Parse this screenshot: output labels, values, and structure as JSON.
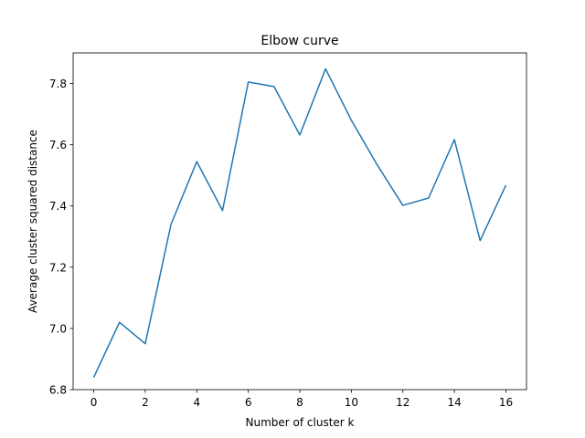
{
  "chart_data": {
    "type": "line",
    "title": "Elbow curve",
    "xlabel": "Number of cluster k",
    "ylabel": "Average cluster squared distance",
    "xlim": [
      -0.8,
      16.8
    ],
    "ylim": [
      6.8,
      7.9
    ],
    "xticks": [
      0,
      2,
      4,
      6,
      8,
      10,
      12,
      14,
      16
    ],
    "yticks": [
      6.8,
      7.0,
      7.2,
      7.4,
      7.6,
      7.8
    ],
    "ytick_labels": [
      "6.8",
      "7.0",
      "7.2",
      "7.4",
      "7.6",
      "7.8"
    ],
    "grid": false,
    "series": [
      {
        "color": "#1f77b4",
        "x": [
          0,
          1,
          2,
          3,
          4,
          5,
          6,
          7,
          8,
          9,
          10,
          11,
          12,
          13,
          14,
          15,
          16
        ],
        "y": [
          6.84,
          7.02,
          6.95,
          7.34,
          7.545,
          7.385,
          7.805,
          7.79,
          7.632,
          7.848,
          7.68,
          7.535,
          7.402,
          7.426,
          7.617,
          7.287,
          7.468
        ]
      }
    ]
  }
}
